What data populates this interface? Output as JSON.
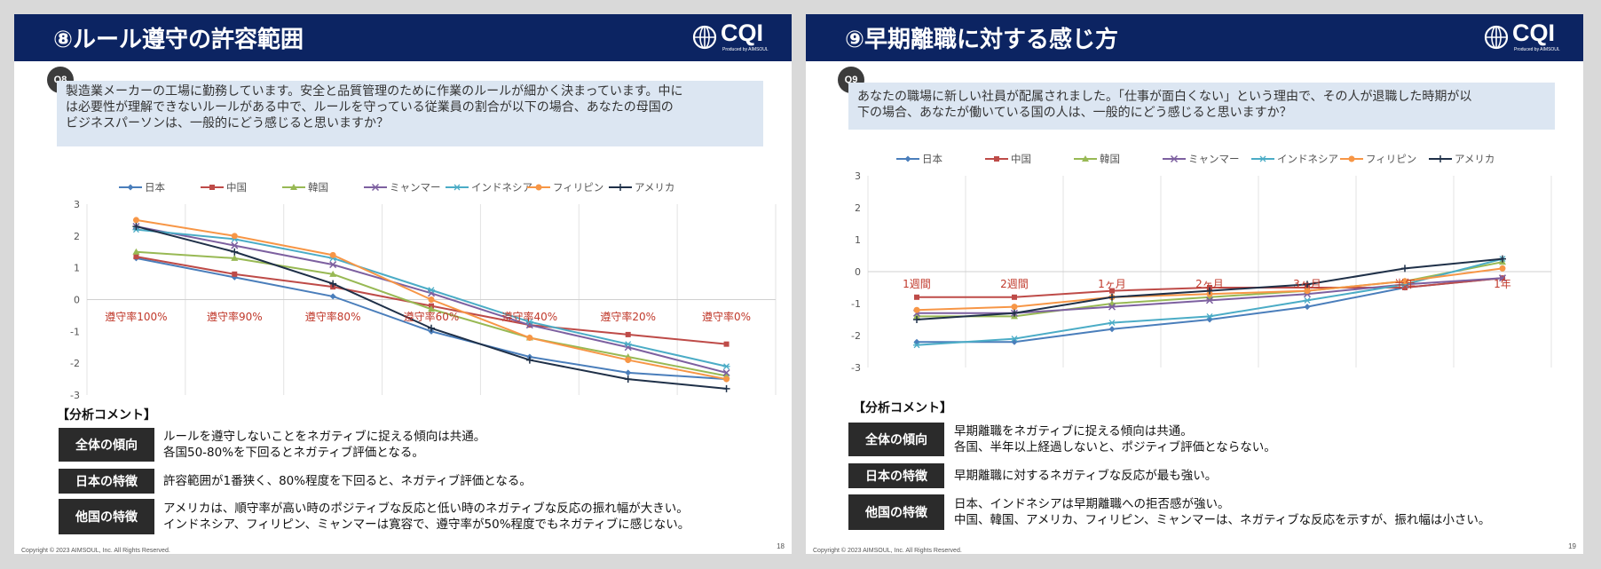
{
  "slides": [
    {
      "title": "⑧ルール遵守の許容範囲",
      "logo_text": "CQI",
      "logo_sub": "Produced by AIMSOUL",
      "question_badge": "Q8",
      "question_lines": [
        "製造業メーカーの工場に勤務しています。安全と品質管理のために作業のルールが細かく決まっています。中に",
        "は必要性が理解できないルールがある中で、ルールを守っている従業員の割合が以下の場合、あなたの母国の",
        "ビジネスパーソンは、一般的にどう感じると思いますか？"
      ],
      "analysis_title": "【分析コメント】",
      "comments": [
        {
          "tag": "全体の傾向",
          "lines": [
            "ルールを遵守しないことをネガティブに捉える傾向は共通。",
            "各国50-80%を下回るとネガティブ評価となる。"
          ]
        },
        {
          "tag": "日本の特徴",
          "lines": [
            "許容範囲が1番狭く、80%程度を下回ると、ネガティブ評価となる。"
          ]
        },
        {
          "tag": "他国の特徴",
          "lines": [
            "アメリカは、順守率が高い時のポジティブな反応と低い時のネガティブな反応の振れ幅が大きい。",
            "インドネシア、フィリピン、ミャンマーは寛容で、遵守率が50%程度でもネガティブに感じない。"
          ]
        }
      ],
      "copyright": "Copyright © 2023 AIMSOUL, Inc. All Rights Reserved.",
      "page_number": "18"
    },
    {
      "title": "⑨早期離職に対する感じ方",
      "logo_text": "CQI",
      "logo_sub": "Produced by AIMSOUL",
      "question_badge": "Q9",
      "question_lines": [
        "あなたの職場に新しい社員が配属されました。「仕事が面白くない」という理由で、その人が退職した時期が以",
        "下の場合、あなたが働いている国の人は、一般的にどう感じると思いますか？"
      ],
      "analysis_title": "【分析コメント】",
      "comments": [
        {
          "tag": "全体の傾向",
          "lines": [
            "早期離職をネガティブに捉える傾向は共通。",
            "各国、半年以上経過しないと、ポジティブ評価とならない。"
          ]
        },
        {
          "tag": "日本の特徴",
          "lines": [
            "早期離職に対するネガティブな反応が最も強い。"
          ]
        },
        {
          "tag": "他国の特徴",
          "lines": [
            "日本、インドネシアは早期離職への拒否感が強い。",
            "中国、韓国、アメリカ、フィリピン、ミャンマーは、ネガティブな反応を示すが、振れ幅は小さい。"
          ]
        }
      ],
      "copyright": "Copyright © 2023 AIMSOUL, Inc. All Rights Reserved.",
      "page_number": "19"
    }
  ],
  "chart_data": [
    {
      "type": "line",
      "categories": [
        "遵守率100%",
        "遵守率90%",
        "遵守率80%",
        "遵守率60%",
        "遵守率40%",
        "遵守率20%",
        "遵守率0%"
      ],
      "ylim": [
        -3,
        3
      ],
      "yticks": [
        "3",
        "2",
        "1",
        "0",
        "-1",
        "-2",
        "-3"
      ],
      "grid": true,
      "legend_position": "top",
      "category_label_color": "#c0392b",
      "series": [
        {
          "name": "日本",
          "color": "#4a7ebb",
          "marker": "diamond",
          "values": [
            1.3,
            0.7,
            0.1,
            -1.0,
            -1.8,
            -2.3,
            -2.5
          ]
        },
        {
          "name": "中国",
          "color": "#be4b48",
          "marker": "square",
          "values": [
            1.35,
            0.8,
            0.4,
            -0.2,
            -0.8,
            -1.1,
            -1.4
          ]
        },
        {
          "name": "韓国",
          "color": "#98b954",
          "marker": "triangle",
          "values": [
            1.5,
            1.3,
            0.8,
            -0.3,
            -1.2,
            -1.8,
            -2.4
          ]
        },
        {
          "name": "ミャンマー",
          "color": "#7d60a0",
          "marker": "x",
          "values": [
            2.3,
            1.7,
            1.1,
            0.2,
            -0.8,
            -1.5,
            -2.3
          ]
        },
        {
          "name": "インドネシア",
          "color": "#4bacc6",
          "marker": "star",
          "values": [
            2.2,
            1.9,
            1.3,
            0.3,
            -0.7,
            -1.4,
            -2.1
          ]
        },
        {
          "name": "フィリピン",
          "color": "#f79646",
          "marker": "circle",
          "values": [
            2.5,
            2.0,
            1.4,
            0.0,
            -1.2,
            -1.9,
            -2.5
          ]
        },
        {
          "name": "アメリカ",
          "color": "#1f3048",
          "marker": "plus",
          "values": [
            2.3,
            1.5,
            0.5,
            -0.9,
            -1.9,
            -2.5,
            -2.8
          ]
        }
      ]
    },
    {
      "type": "line",
      "categories": [
        "1週間",
        "2週間",
        "1ヶ月",
        "2ヶ月",
        "3ヶ月",
        "半年",
        "1年"
      ],
      "ylim": [
        -3,
        3
      ],
      "yticks": [
        "3",
        "2",
        "1",
        "0",
        "-1",
        "-2",
        "-3"
      ],
      "grid": true,
      "legend_position": "top",
      "category_label_color": "#c0392b",
      "series": [
        {
          "name": "日本",
          "color": "#4a7ebb",
          "marker": "diamond",
          "values": [
            -2.2,
            -2.2,
            -1.8,
            -1.5,
            -1.1,
            -0.5,
            -0.2
          ]
        },
        {
          "name": "中国",
          "color": "#be4b48",
          "marker": "square",
          "values": [
            -0.8,
            -0.8,
            -0.6,
            -0.5,
            -0.5,
            -0.5,
            -0.2
          ]
        },
        {
          "name": "韓国",
          "color": "#98b954",
          "marker": "triangle",
          "values": [
            -1.4,
            -1.4,
            -1.0,
            -0.8,
            -0.6,
            -0.3,
            0.3
          ]
        },
        {
          "name": "ミャンマー",
          "color": "#7d60a0",
          "marker": "x",
          "values": [
            -1.3,
            -1.3,
            -1.1,
            -0.9,
            -0.7,
            -0.4,
            -0.2
          ]
        },
        {
          "name": "インドネシア",
          "color": "#4bacc6",
          "marker": "star",
          "values": [
            -2.3,
            -2.1,
            -1.6,
            -1.4,
            -0.9,
            -0.4,
            0.4
          ]
        },
        {
          "name": "フィリピン",
          "color": "#f79646",
          "marker": "circle",
          "values": [
            -1.2,
            -1.1,
            -0.8,
            -0.7,
            -0.6,
            -0.3,
            0.1
          ]
        },
        {
          "name": "アメリカ",
          "color": "#1f3048",
          "marker": "plus",
          "values": [
            -1.5,
            -1.3,
            -0.8,
            -0.6,
            -0.4,
            0.1,
            0.4
          ]
        }
      ]
    }
  ]
}
